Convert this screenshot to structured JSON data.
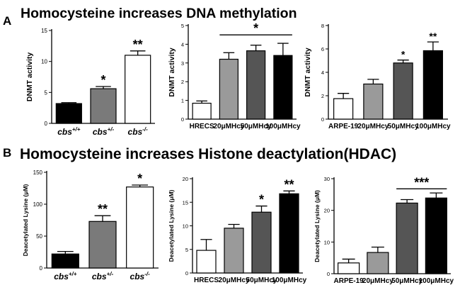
{
  "panels": [
    {
      "letter": "A",
      "title": "Homocysteine increases DNA methylation"
    },
    {
      "letter": "B",
      "title": "Homocysteine increases Histone deactylation(HDAC)"
    }
  ],
  "chart_data": [
    {
      "type": "bar",
      "ylabel": "DNMT activity",
      "ylim": [
        0,
        15
      ],
      "yticks": [
        0,
        5,
        10,
        15
      ],
      "categories": [
        {
          "base": "cbs",
          "sup": "+/+"
        },
        {
          "base": "cbs",
          "sup": "+/-"
        },
        {
          "base": "cbs",
          "sup": "-/-"
        }
      ],
      "values": [
        3.2,
        5.6,
        11.0
      ],
      "errors": [
        0.15,
        0.35,
        0.7
      ],
      "colors": [
        "#000000",
        "#7a7a7a",
        "#ffffff"
      ],
      "annotations": [
        {
          "bar": 1,
          "label": "*"
        },
        {
          "bar": 2,
          "label": "**"
        }
      ],
      "brackets": []
    },
    {
      "type": "bar",
      "ylabel": "DNMT activity",
      "ylim": [
        0,
        5
      ],
      "yticks": [
        0,
        1,
        2,
        3,
        4,
        5
      ],
      "categories": [
        "HRECS",
        "20μMHcy",
        "50μMHcy",
        "100μMHcy"
      ],
      "values": [
        0.85,
        3.2,
        3.65,
        3.4
      ],
      "errors": [
        0.12,
        0.35,
        0.3,
        0.65
      ],
      "colors": [
        "#ffffff",
        "#9a9a9a",
        "#555555",
        "#000000"
      ],
      "annotations": [],
      "brackets": [
        {
          "from": 1,
          "to": 3,
          "y": 4.5,
          "label": "*"
        }
      ]
    },
    {
      "type": "bar",
      "ylabel": "DNMT activity",
      "ylim": [
        0,
        8
      ],
      "yticks": [
        0,
        2,
        4,
        6,
        8
      ],
      "categories": [
        "ARPE-19",
        "20μMHcy",
        "50μMHcy",
        "100μMHcy"
      ],
      "values": [
        1.75,
        3.0,
        4.8,
        5.85
      ],
      "errors": [
        0.45,
        0.4,
        0.25,
        0.75
      ],
      "colors": [
        "#ffffff",
        "#9a9a9a",
        "#555555",
        "#000000"
      ],
      "annotations": [
        {
          "bar": 2,
          "label": "*"
        },
        {
          "bar": 3,
          "label": "**"
        }
      ],
      "brackets": []
    },
    {
      "type": "bar",
      "ylabel": "Deacetylated Lysine (μM)",
      "ylim": [
        0,
        150
      ],
      "yticks": [
        0,
        50,
        100,
        150
      ],
      "categories": [
        {
          "base": "cbs",
          "sup": "+/+"
        },
        {
          "base": "cbs",
          "sup": "+/-"
        },
        {
          "base": "cbs",
          "sup": "-/-"
        }
      ],
      "values": [
        22,
        73,
        127
      ],
      "errors": [
        4,
        9,
        3
      ],
      "colors": [
        "#000000",
        "#7a7a7a",
        "#ffffff"
      ],
      "annotations": [
        {
          "bar": 1,
          "label": "**"
        },
        {
          "bar": 2,
          "label": "*"
        }
      ],
      "brackets": []
    },
    {
      "type": "bar",
      "ylabel": "Deacetylated Lysine (μM)",
      "ylim": [
        0,
        20
      ],
      "yticks": [
        0,
        5,
        10,
        15,
        20
      ],
      "categories": [
        "HRECS",
        "20μMHcy",
        "50μMHcy",
        "100μMHcy"
      ],
      "values": [
        4.8,
        9.5,
        12.9,
        16.8
      ],
      "errors": [
        2.3,
        0.8,
        1.3,
        0.6
      ],
      "colors": [
        "#ffffff",
        "#9a9a9a",
        "#555555",
        "#000000"
      ],
      "annotations": [
        {
          "bar": 2,
          "label": "*"
        },
        {
          "bar": 3,
          "label": "**"
        }
      ],
      "brackets": []
    },
    {
      "type": "bar",
      "ylabel": "Deacetylated Lysine (μM)",
      "ylim": [
        0,
        30
      ],
      "yticks": [
        0,
        10,
        20,
        30
      ],
      "categories": [
        "ARPE-19",
        "20μMHcy",
        "50μMHcy",
        "100μMHcy"
      ],
      "values": [
        3.4,
        6.7,
        22.3,
        23.9
      ],
      "errors": [
        1.2,
        1.7,
        1.1,
        1.6
      ],
      "colors": [
        "#ffffff",
        "#9a9a9a",
        "#555555",
        "#000000"
      ],
      "annotations": [],
      "brackets": [
        {
          "from": 2,
          "to": 3,
          "y": 26.8,
          "label": "***"
        }
      ]
    }
  ]
}
